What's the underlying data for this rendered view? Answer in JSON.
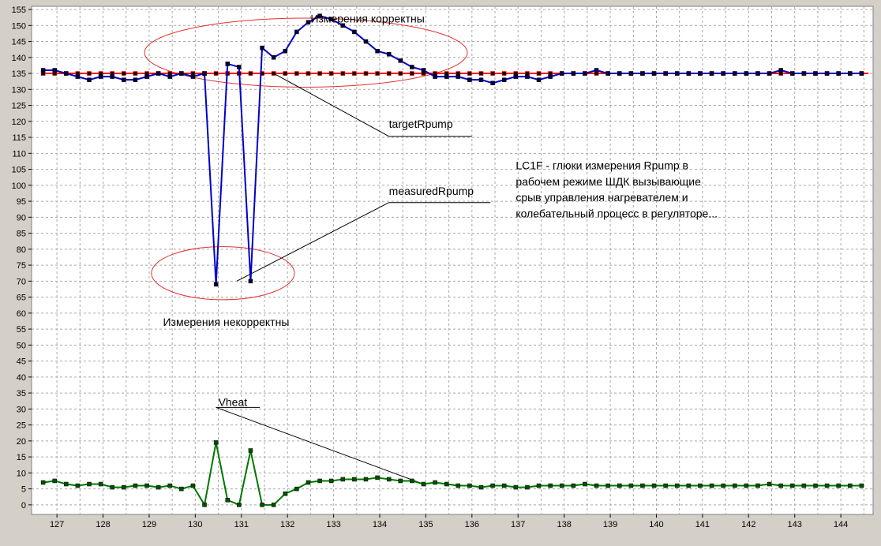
{
  "chart_data": {
    "type": "line",
    "xlim": [
      126.45,
      144.7
    ],
    "ylim": [
      -3,
      156
    ],
    "x_ticks": [
      127,
      128,
      129,
      130,
      131,
      132,
      133,
      134,
      135,
      136,
      137,
      138,
      139,
      140,
      141,
      142,
      143,
      144
    ],
    "y_ticks": [
      0,
      5,
      10,
      15,
      20,
      25,
      30,
      35,
      40,
      45,
      50,
      55,
      60,
      65,
      70,
      75,
      80,
      85,
      90,
      95,
      100,
      105,
      110,
      115,
      120,
      125,
      130,
      135,
      140,
      145,
      150,
      155
    ],
    "grid": true,
    "series": [
      {
        "name": "targetRpump",
        "color": "#ff0000",
        "x": [
          126.7,
          144.6
        ],
        "y": [
          135,
          135
        ],
        "markers": [
          126.7,
          126.95,
          127.2,
          127.45,
          127.7,
          127.95,
          128.2,
          128.45,
          128.7,
          128.95,
          129.2,
          129.45,
          129.7,
          129.95,
          130.2,
          130.45,
          130.7,
          130.95,
          131.2,
          131.45,
          131.7,
          131.95,
          132.2,
          132.45,
          132.7,
          132.95,
          133.2,
          133.45,
          133.7,
          133.95,
          134.2,
          134.45,
          134.7,
          134.95,
          135.2,
          135.45,
          135.7,
          135.95,
          136.2,
          136.45,
          136.7,
          136.95,
          137.2,
          137.45,
          137.7,
          137.95,
          138.2,
          138.45,
          138.7,
          138.95,
          139.2,
          139.45,
          139.7,
          139.95,
          140.2,
          140.45,
          140.7,
          140.95,
          141.2,
          141.45,
          141.7,
          141.95,
          142.2,
          142.45,
          142.7,
          142.95,
          143.2,
          143.45,
          143.7,
          143.95,
          144.2,
          144.45
        ]
      },
      {
        "name": "measuredRpump",
        "color": "#0000c8",
        "x": [
          126.7,
          126.95,
          127.2,
          127.45,
          127.7,
          127.95,
          128.2,
          128.45,
          128.7,
          128.95,
          129.2,
          129.45,
          129.7,
          129.95,
          130.2,
          130.45,
          130.7,
          130.95,
          131.2,
          131.45,
          131.7,
          131.95,
          132.2,
          132.45,
          132.7,
          132.95,
          133.2,
          133.45,
          133.7,
          133.95,
          134.2,
          134.45,
          134.7,
          134.95,
          135.2,
          135.45,
          135.7,
          135.95,
          136.2,
          136.45,
          136.7,
          136.95,
          137.2,
          137.45,
          137.7,
          137.95,
          138.2,
          138.45,
          138.7,
          138.95,
          139.2,
          139.45,
          139.7,
          139.95,
          140.2,
          140.45,
          140.7,
          140.95,
          141.2,
          141.45,
          141.7,
          141.95,
          142.2,
          142.45,
          142.7,
          142.95,
          143.2,
          143.45,
          143.7,
          143.95,
          144.2,
          144.45
        ],
        "y": [
          136,
          136,
          135,
          134,
          133,
          134,
          134,
          133,
          133,
          134,
          135,
          134,
          135,
          134,
          135,
          69,
          138,
          137,
          70,
          143,
          140,
          142,
          148,
          151,
          153,
          152,
          150,
          148,
          145,
          142,
          141,
          139,
          137,
          136,
          134,
          134,
          134,
          133,
          133,
          132,
          133,
          134,
          134,
          133,
          134,
          135,
          135,
          135,
          136,
          135,
          135,
          135,
          135,
          135,
          135,
          135,
          135,
          135,
          135,
          135,
          135,
          135,
          135,
          135,
          136,
          135,
          135,
          135,
          135,
          135,
          135,
          135
        ]
      },
      {
        "name": "Vheat",
        "color": "#007800",
        "x": [
          126.7,
          126.95,
          127.2,
          127.45,
          127.7,
          127.95,
          128.2,
          128.45,
          128.7,
          128.95,
          129.2,
          129.45,
          129.7,
          129.95,
          130.2,
          130.45,
          130.7,
          130.95,
          131.2,
          131.45,
          131.7,
          131.95,
          132.2,
          132.45,
          132.7,
          132.95,
          133.2,
          133.45,
          133.7,
          133.95,
          134.2,
          134.45,
          134.7,
          134.95,
          135.2,
          135.45,
          135.7,
          135.95,
          136.2,
          136.45,
          136.7,
          136.95,
          137.2,
          137.45,
          137.7,
          137.95,
          138.2,
          138.45,
          138.7,
          138.95,
          139.2,
          139.45,
          139.7,
          139.95,
          140.2,
          140.45,
          140.7,
          140.95,
          141.2,
          141.45,
          141.7,
          141.95,
          142.2,
          142.45,
          142.7,
          142.95,
          143.2,
          143.45,
          143.7,
          143.95,
          144.2,
          144.45
        ],
        "y": [
          7,
          7.5,
          6.5,
          6,
          6.5,
          6.5,
          5.5,
          5.5,
          6,
          6,
          5.5,
          6,
          5,
          6,
          0,
          19.5,
          1.5,
          0,
          17,
          0,
          0,
          3.5,
          5,
          7,
          7.5,
          7.5,
          8,
          8,
          8,
          8.5,
          8,
          7.5,
          7.5,
          6.5,
          7,
          6.5,
          6,
          6,
          5.5,
          6,
          6,
          5.5,
          5.5,
          6,
          6,
          6,
          6,
          6.5,
          6,
          6,
          6,
          6,
          6,
          6,
          6,
          6,
          6,
          6,
          6,
          6,
          6,
          6,
          6,
          6.5,
          6,
          6,
          6,
          6,
          6,
          6,
          6,
          6
        ]
      }
    ],
    "annotations": [
      {
        "id": "correct",
        "text": "Измерения корректны",
        "x": 132.5,
        "y": 151
      },
      {
        "id": "incorrect",
        "text": "Измерения некорректны",
        "x": 129.3,
        "y": 56
      },
      {
        "id": "target-label",
        "text": "targetRpump",
        "x": 134.2,
        "y": 118
      },
      {
        "id": "measured-label",
        "text": "measuredRpump",
        "x": 134.2,
        "y": 97
      },
      {
        "id": "vheat-label",
        "text": "Vheat",
        "x": 130.5,
        "y": 31
      },
      {
        "id": "note-1",
        "text": "LC1F - глюки измерения Rpump в",
        "x": 136.95,
        "y": 105
      },
      {
        "id": "note-2",
        "text": "рабочем режиме ШДК вызывающие",
        "x": 136.95,
        "y": 100
      },
      {
        "id": "note-3",
        "text": "срыв управления нагревателем и",
        "x": 136.95,
        "y": 95
      },
      {
        "id": "note-4",
        "text": "колебательный процесс в регуляторе...",
        "x": 136.95,
        "y": 90
      }
    ],
    "ellipses": [
      {
        "id": "ellipse-correct",
        "cx": 132.4,
        "cy": 141.5,
        "rx": 3.5,
        "ry": 10.8,
        "color": "#e03030"
      },
      {
        "id": "ellipse-incorrect",
        "cx": 130.6,
        "cy": 72.5,
        "rx": 1.55,
        "ry": 8.3,
        "color": "#e03030"
      }
    ],
    "leaders": [
      {
        "id": "leader-target",
        "from": [
          131.7,
          135
        ],
        "to": [
          134.2,
          115.3
        ],
        "underline_to": 136.0
      },
      {
        "id": "leader-measured",
        "from": [
          130.9,
          70
        ],
        "to": [
          134.2,
          94.6
        ],
        "underline_to": 136.4
      },
      {
        "id": "leader-vheat",
        "from": [
          134.95,
          6.5
        ],
        "to": [
          130.45,
          30.5
        ],
        "underline_to": 131.4
      }
    ]
  }
}
